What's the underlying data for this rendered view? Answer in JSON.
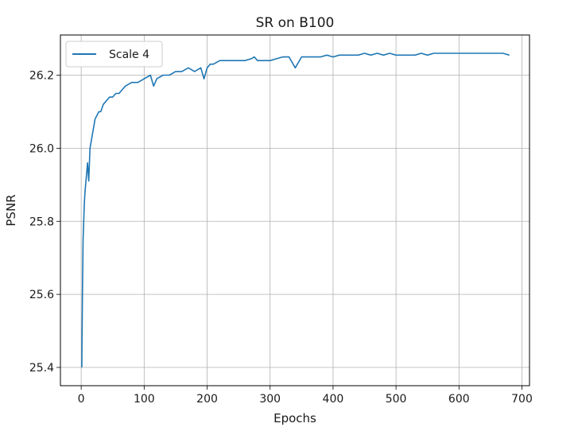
{
  "chart_data": {
    "type": "line",
    "title": "SR on B100",
    "xlabel": "Epochs",
    "ylabel": "PSNR",
    "xlim": [
      -33,
      712
    ],
    "ylim": [
      25.35,
      26.31
    ],
    "xticks": [
      0,
      100,
      200,
      300,
      400,
      500,
      600,
      700
    ],
    "xtick_labels": [
      "0",
      "100",
      "200",
      "300",
      "400",
      "500",
      "600",
      "700"
    ],
    "yticks": [
      25.4,
      25.6,
      25.8,
      26.0,
      26.2
    ],
    "ytick_labels": [
      "25.4",
      "25.6",
      "25.8",
      "26.0",
      "26.2"
    ],
    "grid": true,
    "legend_position": "upper-left",
    "series": [
      {
        "name": "Scale 4",
        "color": "#1f77b4",
        "x": [
          1,
          2,
          3,
          4,
          5,
          6,
          8,
          10,
          12,
          14,
          16,
          18,
          20,
          22,
          25,
          28,
          31,
          35,
          40,
          45,
          50,
          55,
          60,
          65,
          70,
          80,
          90,
          100,
          110,
          115,
          120,
          130,
          140,
          150,
          160,
          170,
          180,
          190,
          195,
          200,
          205,
          210,
          220,
          230,
          240,
          250,
          260,
          270,
          275,
          280,
          290,
          300,
          310,
          320,
          330,
          340,
          350,
          360,
          370,
          380,
          390,
          400,
          410,
          420,
          430,
          440,
          450,
          460,
          470,
          480,
          490,
          500,
          510,
          520,
          530,
          540,
          550,
          560,
          570,
          580,
          590,
          600,
          610,
          620,
          630,
          640,
          650,
          660,
          670,
          680
        ],
        "y": [
          25.4,
          25.6,
          25.75,
          25.8,
          25.85,
          25.88,
          25.92,
          25.96,
          25.91,
          26.0,
          26.02,
          26.04,
          26.06,
          26.08,
          26.09,
          26.1,
          26.1,
          26.12,
          26.13,
          26.14,
          26.14,
          26.15,
          26.15,
          26.16,
          26.17,
          26.18,
          26.18,
          26.19,
          26.2,
          26.17,
          26.19,
          26.2,
          26.2,
          26.21,
          26.21,
          26.22,
          26.21,
          26.22,
          26.19,
          26.22,
          26.23,
          26.23,
          26.24,
          26.24,
          26.24,
          26.24,
          26.24,
          26.245,
          26.25,
          26.24,
          26.24,
          26.24,
          26.245,
          26.25,
          26.25,
          26.22,
          26.25,
          26.25,
          26.25,
          26.25,
          26.255,
          26.25,
          26.255,
          26.255,
          26.255,
          26.255,
          26.26,
          26.255,
          26.26,
          26.255,
          26.26,
          26.255,
          26.255,
          26.255,
          26.255,
          26.26,
          26.255,
          26.26,
          26.26,
          26.26,
          26.26,
          26.26,
          26.26,
          26.26,
          26.26,
          26.26,
          26.26,
          26.26,
          26.26,
          26.255
        ]
      }
    ]
  }
}
